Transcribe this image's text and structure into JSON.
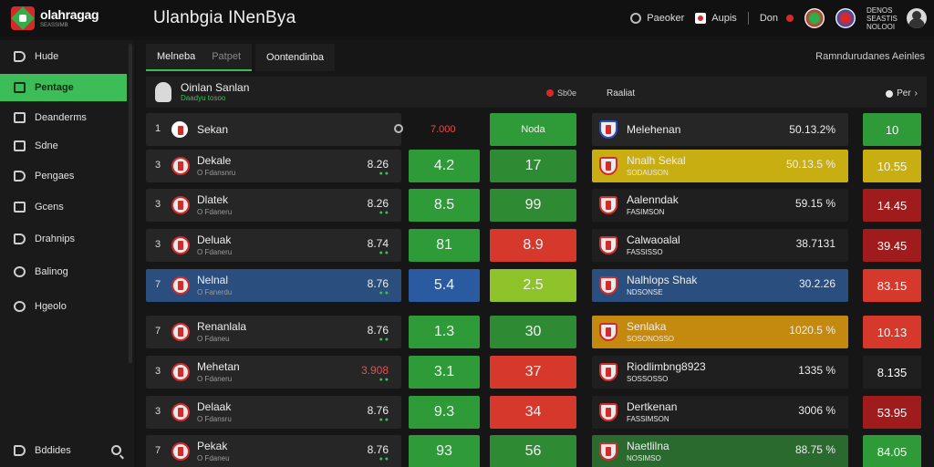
{
  "app": {
    "logo_name": "olahragag",
    "logo_sub": "SEASSIMB",
    "title": "Ulanbgia  INenBya"
  },
  "topbar": {
    "btn1": "Paeoker",
    "btn2": "Aupis",
    "btn3": "Don",
    "badge": "DENOS\nSEASTIS\nNOLOOI"
  },
  "sidebar": {
    "items": [
      {
        "label": "Hude",
        "icon": "tag-icon"
      },
      {
        "label": "Pentage",
        "icon": "list-icon"
      },
      {
        "label": "Deanderms",
        "icon": "calendar-icon"
      },
      {
        "label": "Sdne",
        "icon": "chart-icon"
      },
      {
        "label": "Pengaes",
        "icon": "people-icon"
      },
      {
        "label": "Gcens",
        "icon": "document-icon"
      },
      {
        "label": "Drahnips",
        "icon": "flag-icon"
      },
      {
        "label": "Balinog",
        "icon": "ball-icon"
      },
      {
        "label": "Hgeolo",
        "icon": "gear-icon"
      }
    ],
    "footer": "Bddides"
  },
  "tabs": {
    "tab1": "Melneba",
    "tab1_dim": "Patpet",
    "tab2": "Oontendinba"
  },
  "filter_label": "Ramndurudanes  Aeinles",
  "panel": {
    "title": "Oinlan Sanlan",
    "sub": "Daadyu tosoo",
    "mid": "Sb0e",
    "right": "Raaliat",
    "per": "Per"
  },
  "left_header": {
    "rank": "1",
    "team": "Sekan",
    "score": "7.000",
    "col2": "Noda"
  },
  "left_rows": [
    {
      "rank": "3",
      "team": "Dekale",
      "sub": "O Fdansnru",
      "score": "8.26",
      "c1": "4.2",
      "c2": "17",
      "c1color": "#2f9a38",
      "c2color": "#2f8a34"
    },
    {
      "rank": "3",
      "team": "Dlatek",
      "sub": "O Fdaneru",
      "score": "8.26",
      "c1": "8.5",
      "c2": "99",
      "c1color": "#2f9a38",
      "c2color": "#2f8a34"
    },
    {
      "rank": "3",
      "team": "Deluak",
      "sub": "O Fdaneru",
      "score": "8.74",
      "c1": "81",
      "c2": "8.9",
      "c1color": "#2f9a38",
      "c2color": "#d6382c"
    },
    {
      "rank": "7",
      "team": "Nelnal",
      "sub": "O Fanerdu",
      "score": "8.76",
      "c1": "5.4",
      "c2": "2.5",
      "c1color": "#2a5aa0",
      "c2color": "#8ec42a"
    },
    {
      "rank": "7",
      "team": "Renanlala",
      "sub": "O Fdaneu",
      "score": "8.76",
      "c1": "1.3",
      "c2": "30",
      "c1color": "#2f9a38",
      "c2color": "#2f8a34"
    },
    {
      "rank": "3",
      "team": "Mehetan",
      "sub": "O Fdaneru",
      "score": "3.908",
      "c1": "3.1",
      "c2": "37",
      "c1color": "#2f9a38",
      "c2color": "#d6382c"
    },
    {
      "rank": "3",
      "team": "Delaak",
      "sub": "O Fdansru",
      "score": "8.76",
      "c1": "9.3",
      "c2": "34",
      "c1color": "#2f9a38",
      "c2color": "#d6382c"
    },
    {
      "rank": "7",
      "team": "Pekak",
      "sub": "O Fdaneu",
      "score": "8.76",
      "c1": "93",
      "c2": "56",
      "c1color": "#2f9a38",
      "c2color": "#2f8a34"
    }
  ],
  "right_header": {
    "team": "Melehenan",
    "score": "50.13.2%",
    "value": "10"
  },
  "right_rows": [
    {
      "team": "Nnalh Sekal",
      "sub": "SODAUSON",
      "score": "50.13.5 %",
      "value": "10.55",
      "bg": "#c9ae12",
      "vcolor": "#c9ae12"
    },
    {
      "team": "Aalenndak",
      "sub": "FASIMSON",
      "score": "59.15 %",
      "value": "14.45",
      "bg": "#1f1f1f",
      "vcolor": "#a01b1b"
    },
    {
      "team": "Calwaoalal",
      "sub": "FASSISSO",
      "score": "38.7131",
      "value": "39.45",
      "bg": "#1f1f1f",
      "vcolor": "#a01b1b"
    },
    {
      "team": "Nalhlops Shak",
      "sub": "NDSONSE",
      "score": "30.2.26",
      "value": "83.15",
      "bg": "#2a4e7d",
      "vcolor": "#d6382c"
    },
    {
      "team": "Senlaka",
      "sub": "SOSONOSSO",
      "score": "1020.5 %",
      "value": "10.13",
      "bg": "#c48a10",
      "vcolor": "#d6382c"
    },
    {
      "team": "Riodlimbng8923",
      "sub": "SOSSOSSO",
      "score": "1335 %",
      "value": "8.135",
      "bg": "#1f1f1f",
      "vcolor": "#1f1f1f"
    },
    {
      "team": "Dertkenan",
      "sub": "FASSIMSON",
      "score": "3006 %",
      "value": "53.95",
      "bg": "#1f1f1f",
      "vcolor": "#a01b1b"
    },
    {
      "team": "Naetlilna",
      "sub": "NOSIMSO",
      "score": "88.75 %",
      "value": "84.05",
      "bg": "#2a6a2e",
      "vcolor": "#2f9a38"
    }
  ]
}
